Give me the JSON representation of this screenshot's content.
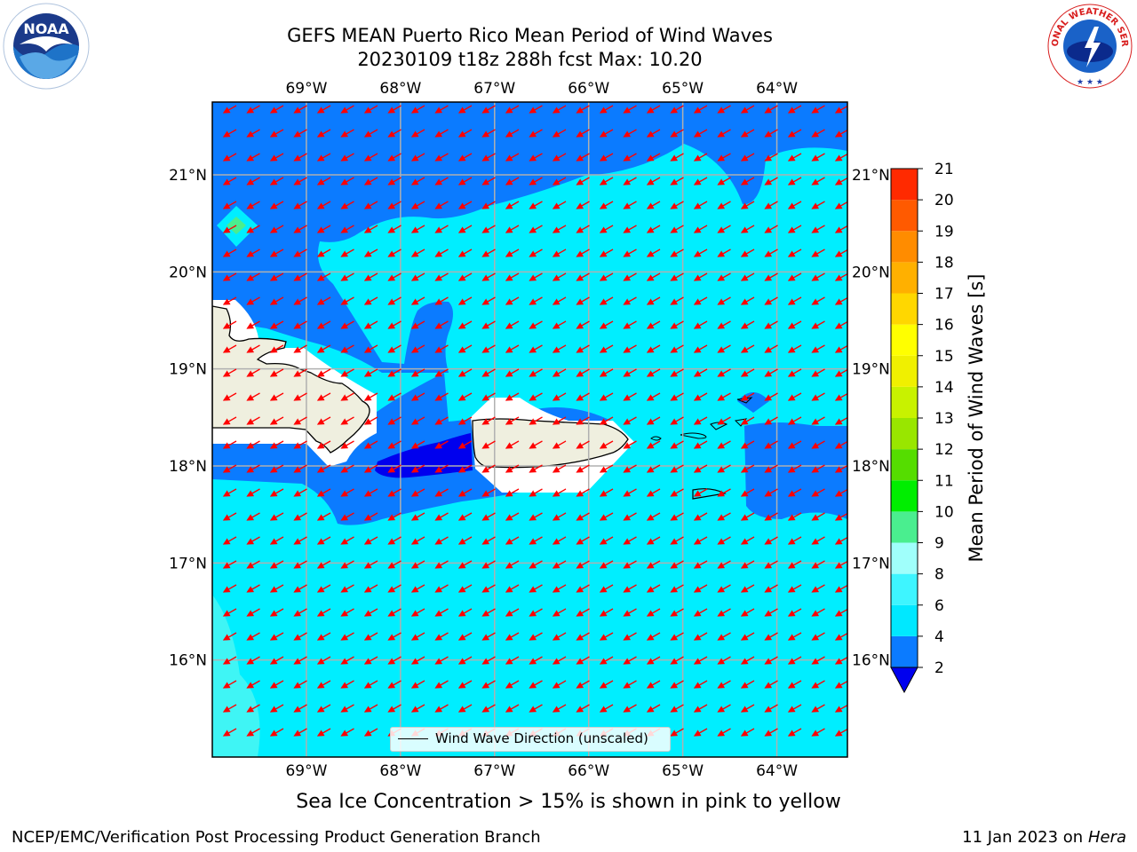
{
  "header": {
    "title_line1": "GEFS MEAN Puerto Rico Mean Period of Wind Waves",
    "title_line2": "20230109 t18z 288h fcst   Max: 10.20"
  },
  "logos": {
    "left": {
      "name": "noaa-logo",
      "text": "NOAA"
    },
    "right": {
      "name": "nws-logo",
      "text": "NATIONAL WEATHER SERVICE"
    }
  },
  "map": {
    "lon_range": [
      -70.0,
      -63.25
    ],
    "lat_range": [
      15.0,
      21.75
    ],
    "lon_ticks": [
      "69°W",
      "68°W",
      "67°W",
      "66°W",
      "65°W",
      "64°W"
    ],
    "lat_ticks": [
      "21°N",
      "20°N",
      "19°N",
      "18°N",
      "17°N",
      "16°N"
    ],
    "gridlines": true,
    "land_color": "#efefdf",
    "arrow_color": "#ff0000",
    "arrow_direction": "toward south-west"
  },
  "colorbar": {
    "label": "Mean Period of Wind Waves [s]",
    "ticks": [
      "2",
      "4",
      "6",
      "8",
      "9",
      "10",
      "11",
      "12",
      "13",
      "14",
      "15",
      "16",
      "17",
      "18",
      "19",
      "20",
      "21"
    ],
    "colors": [
      "#0b7bff",
      "#00e8ff",
      "#3ef5ff",
      "#a0fffb",
      "#4aee8f",
      "#00ee00",
      "#55dd00",
      "#99e600",
      "#c8f200",
      "#f0f000",
      "#ffff00",
      "#ffd700",
      "#ffb000",
      "#ff8c00",
      "#ff5a00",
      "#ff2a00",
      "#ff0000"
    ],
    "under_color": "#0000ee"
  },
  "legend": {
    "label": "Wind Wave Direction (unscaled)"
  },
  "footer": {
    "subtitle": "Sea Ice Concentration > 15% is shown in pink to yellow",
    "left": "NCEP/EMC/Verification Post Processing Product Generation Branch",
    "right_date": "11 Jan 2023 on",
    "right_host": "Hera"
  }
}
